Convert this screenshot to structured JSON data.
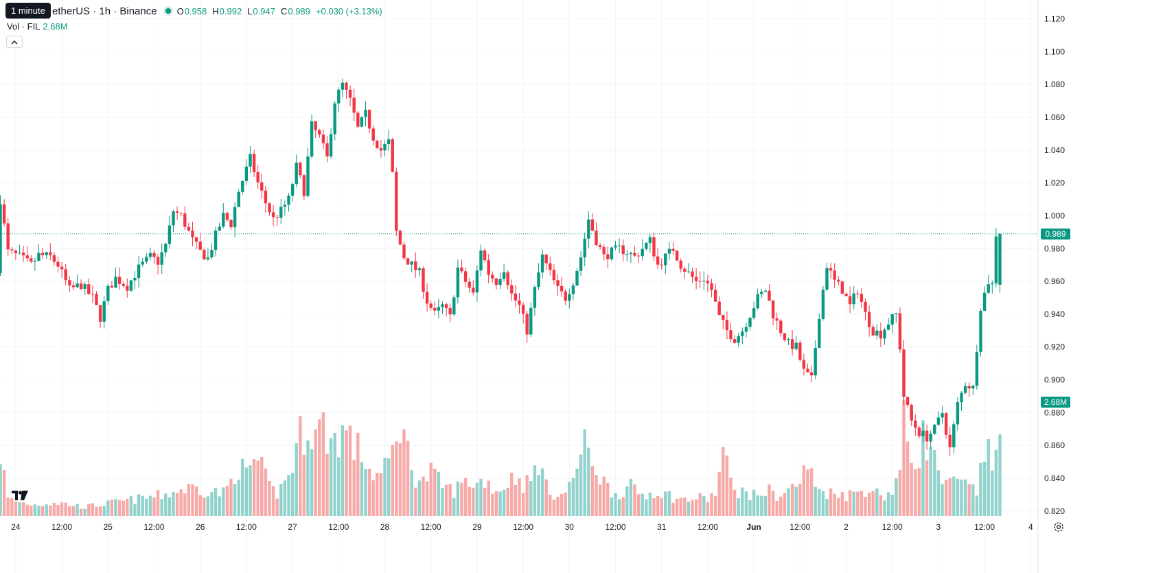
{
  "header": {
    "tooltip": "1 minute",
    "symbol": "etherUS · 1h · Binance",
    "open_label": "O",
    "open": "0.958",
    "high_label": "H",
    "high": "0.992",
    "low_label": "L",
    "low": "0.947",
    "close_label": "C",
    "close": "0.989",
    "change": "+0.030 (+3.13%)"
  },
  "volume_legend": {
    "label": "Vol · FIL",
    "value": "2.68M"
  },
  "last_price_label": "0.989",
  "last_volume_label": "2.68M",
  "colors": {
    "up": "#089981",
    "down": "#f23645",
    "up_volume": "#92d2cc",
    "down_volume": "#f7a9a7",
    "grid": "#f0f3fa"
  },
  "icons": {
    "logo": "tradingview-logo-icon",
    "collapse": "chevron-up-icon",
    "settings": "gear-icon"
  },
  "chart_data": {
    "type": "candlestick",
    "timeframe": "1h",
    "y_axis": {
      "ylim": [
        0.815,
        1.125
      ],
      "ticks": [
        "1.120",
        "1.100",
        "1.080",
        "1.060",
        "1.040",
        "1.020",
        "1.000",
        "0.980",
        "0.960",
        "0.940",
        "0.920",
        "0.900",
        "0.880",
        "0.860",
        "0.840",
        "0.820"
      ]
    },
    "x_axis": {
      "ticks": [
        {
          "label": "24",
          "index": 4
        },
        {
          "label": "12:00",
          "index": 16
        },
        {
          "label": "25",
          "index": 28
        },
        {
          "label": "12:00",
          "index": 40
        },
        {
          "label": "26",
          "index": 52
        },
        {
          "label": "12:00",
          "index": 64
        },
        {
          "label": "27",
          "index": 76
        },
        {
          "label": "12:00",
          "index": 88
        },
        {
          "label": "28",
          "index": 100
        },
        {
          "label": "12:00",
          "index": 112
        },
        {
          "label": "29",
          "index": 124
        },
        {
          "label": "12:00",
          "index": 136
        },
        {
          "label": "30",
          "index": 148
        },
        {
          "label": "12:00",
          "index": 160
        },
        {
          "label": "31",
          "index": 172
        },
        {
          "label": "12:00",
          "index": 184
        },
        {
          "label": "Jun",
          "index": 196
        },
        {
          "label": "12:00",
          "index": 208
        },
        {
          "label": "2",
          "index": 220
        },
        {
          "label": "12:00",
          "index": 232
        },
        {
          "label": "3",
          "index": 244
        },
        {
          "label": "12:00",
          "index": 256
        },
        {
          "label": "4",
          "index": 268
        }
      ]
    },
    "last_price": 0.989,
    "price_path": [
      [
        0,
        0.965
      ],
      [
        1,
        1.01
      ],
      [
        3,
        0.978
      ],
      [
        6,
        0.975
      ],
      [
        9,
        0.97
      ],
      [
        11,
        0.976
      ],
      [
        14,
        0.975
      ],
      [
        16,
        0.97
      ],
      [
        19,
        0.955
      ],
      [
        22,
        0.958
      ],
      [
        25,
        0.95
      ],
      [
        27,
        0.938
      ],
      [
        29,
        0.955
      ],
      [
        31,
        0.962
      ],
      [
        34,
        0.957
      ],
      [
        37,
        0.968
      ],
      [
        40,
        0.975
      ],
      [
        42,
        0.972
      ],
      [
        44,
        0.982
      ],
      [
        46,
        1.003
      ],
      [
        48,
        1.0
      ],
      [
        51,
        0.985
      ],
      [
        53,
        0.978
      ],
      [
        55,
        0.974
      ],
      [
        57,
        0.988
      ],
      [
        59,
        1.0
      ],
      [
        61,
        0.995
      ],
      [
        63,
        1.015
      ],
      [
        66,
        1.035
      ],
      [
        68,
        1.02
      ],
      [
        70,
        1.008
      ],
      [
        72,
        0.998
      ],
      [
        74,
        1.003
      ],
      [
        76,
        1.01
      ],
      [
        78,
        1.03
      ],
      [
        80,
        1.015
      ],
      [
        82,
        1.055
      ],
      [
        84,
        1.048
      ],
      [
        86,
        1.035
      ],
      [
        88,
        1.07
      ],
      [
        90,
        1.08
      ],
      [
        92,
        1.07
      ],
      [
        94,
        1.053
      ],
      [
        96,
        1.062
      ],
      [
        98,
        1.048
      ],
      [
        100,
        1.04
      ],
      [
        102,
        1.045
      ],
      [
        103,
        1.025
      ],
      [
        104,
        0.99
      ],
      [
        106,
        0.975
      ],
      [
        108,
        0.97
      ],
      [
        110,
        0.965
      ],
      [
        112,
        0.948
      ],
      [
        114,
        0.94
      ],
      [
        116,
        0.945
      ],
      [
        118,
        0.938
      ],
      [
        120,
        0.968
      ],
      [
        122,
        0.96
      ],
      [
        124,
        0.952
      ],
      [
        126,
        0.98
      ],
      [
        128,
        0.965
      ],
      [
        130,
        0.96
      ],
      [
        132,
        0.968
      ],
      [
        134,
        0.952
      ],
      [
        136,
        0.945
      ],
      [
        138,
        0.93
      ],
      [
        140,
        0.955
      ],
      [
        142,
        0.975
      ],
      [
        144,
        0.965
      ],
      [
        146,
        0.955
      ],
      [
        148,
        0.95
      ],
      [
        150,
        0.96
      ],
      [
        152,
        0.975
      ],
      [
        154,
        0.998
      ],
      [
        156,
        0.985
      ],
      [
        158,
        0.975
      ],
      [
        160,
        0.978
      ],
      [
        162,
        0.98
      ],
      [
        164,
        0.978
      ],
      [
        166,
        0.975
      ],
      [
        168,
        0.98
      ],
      [
        170,
        0.985
      ],
      [
        172,
        0.97
      ],
      [
        174,
        0.975
      ],
      [
        176,
        0.98
      ],
      [
        178,
        0.97
      ],
      [
        180,
        0.965
      ],
      [
        182,
        0.96
      ],
      [
        184,
        0.962
      ],
      [
        186,
        0.955
      ],
      [
        188,
        0.938
      ],
      [
        190,
        0.93
      ],
      [
        192,
        0.925
      ],
      [
        194,
        0.93
      ],
      [
        196,
        0.94
      ],
      [
        198,
        0.95
      ],
      [
        200,
        0.955
      ],
      [
        202,
        0.94
      ],
      [
        204,
        0.93
      ],
      [
        206,
        0.922
      ],
      [
        208,
        0.92
      ],
      [
        210,
        0.905
      ],
      [
        212,
        0.9
      ],
      [
        214,
        0.94
      ],
      [
        216,
        0.97
      ],
      [
        218,
        0.96
      ],
      [
        220,
        0.955
      ],
      [
        222,
        0.945
      ],
      [
        224,
        0.955
      ],
      [
        226,
        0.94
      ],
      [
        228,
        0.93
      ],
      [
        230,
        0.928
      ],
      [
        232,
        0.935
      ],
      [
        234,
        0.94
      ],
      [
        235,
        0.92
      ],
      [
        236,
        0.89
      ],
      [
        238,
        0.875
      ],
      [
        240,
        0.868
      ],
      [
        242,
        0.865
      ],
      [
        244,
        0.87
      ],
      [
        246,
        0.88
      ],
      [
        248,
        0.858
      ],
      [
        250,
        0.885
      ],
      [
        252,
        0.898
      ],
      [
        254,
        0.895
      ],
      [
        256,
        0.945
      ],
      [
        258,
        0.96
      ],
      [
        259,
        0.958
      ],
      [
        260,
        0.989
      ]
    ],
    "volume_path": [
      [
        0,
        0.55
      ],
      [
        2,
        0.15
      ],
      [
        5,
        0.12
      ],
      [
        9,
        0.1
      ],
      [
        14,
        0.12
      ],
      [
        18,
        0.1
      ],
      [
        22,
        0.08
      ],
      [
        26,
        0.1
      ],
      [
        30,
        0.12
      ],
      [
        34,
        0.14
      ],
      [
        38,
        0.16
      ],
      [
        42,
        0.18
      ],
      [
        46,
        0.22
      ],
      [
        50,
        0.25
      ],
      [
        54,
        0.22
      ],
      [
        58,
        0.2
      ],
      [
        60,
        0.3
      ],
      [
        62,
        0.45
      ],
      [
        64,
        0.35
      ],
      [
        66,
        0.5
      ],
      [
        68,
        0.4
      ],
      [
        70,
        0.25
      ],
      [
        72,
        0.2
      ],
      [
        74,
        0.3
      ],
      [
        76,
        0.45
      ],
      [
        78,
        0.7
      ],
      [
        80,
        0.8
      ],
      [
        82,
        0.72
      ],
      [
        84,
        0.78
      ],
      [
        86,
        0.65
      ],
      [
        88,
        0.7
      ],
      [
        90,
        0.75
      ],
      [
        92,
        0.6
      ],
      [
        94,
        0.55
      ],
      [
        96,
        0.4
      ],
      [
        98,
        0.35
      ],
      [
        100,
        0.4
      ],
      [
        102,
        0.55
      ],
      [
        104,
        0.85
      ],
      [
        106,
        0.55
      ],
      [
        108,
        0.35
      ],
      [
        110,
        0.3
      ],
      [
        112,
        0.38
      ],
      [
        114,
        0.3
      ],
      [
        116,
        0.25
      ],
      [
        118,
        0.22
      ],
      [
        120,
        0.28
      ],
      [
        122,
        0.3
      ],
      [
        124,
        0.28
      ],
      [
        126,
        0.32
      ],
      [
        128,
        0.25
      ],
      [
        130,
        0.22
      ],
      [
        132,
        0.3
      ],
      [
        134,
        0.35
      ],
      [
        136,
        0.28
      ],
      [
        138,
        0.3
      ],
      [
        140,
        0.5
      ],
      [
        142,
        0.25
      ],
      [
        144,
        0.2
      ],
      [
        146,
        0.18
      ],
      [
        148,
        0.25
      ],
      [
        150,
        0.45
      ],
      [
        152,
        0.6
      ],
      [
        154,
        0.5
      ],
      [
        156,
        0.35
      ],
      [
        158,
        0.25
      ],
      [
        160,
        0.2
      ],
      [
        162,
        0.22
      ],
      [
        164,
        0.25
      ],
      [
        166,
        0.2
      ],
      [
        168,
        0.18
      ],
      [
        170,
        0.22
      ],
      [
        172,
        0.2
      ],
      [
        174,
        0.18
      ],
      [
        176,
        0.15
      ],
      [
        178,
        0.14
      ],
      [
        180,
        0.15
      ],
      [
        182,
        0.16
      ],
      [
        184,
        0.15
      ],
      [
        186,
        0.2
      ],
      [
        188,
        0.55
      ],
      [
        190,
        0.3
      ],
      [
        192,
        0.22
      ],
      [
        194,
        0.2
      ],
      [
        196,
        0.18
      ],
      [
        198,
        0.2
      ],
      [
        200,
        0.22
      ],
      [
        202,
        0.18
      ],
      [
        204,
        0.2
      ],
      [
        206,
        0.25
      ],
      [
        208,
        0.3
      ],
      [
        210,
        0.45
      ],
      [
        212,
        0.25
      ],
      [
        214,
        0.22
      ],
      [
        216,
        0.2
      ],
      [
        218,
        0.22
      ],
      [
        220,
        0.18
      ],
      [
        222,
        0.2
      ],
      [
        224,
        0.22
      ],
      [
        226,
        0.25
      ],
      [
        228,
        0.2
      ],
      [
        230,
        0.18
      ],
      [
        232,
        0.22
      ],
      [
        234,
        0.4
      ],
      [
        235,
        0.8
      ],
      [
        236,
        0.65
      ],
      [
        238,
        0.45
      ],
      [
        240,
        0.7
      ],
      [
        242,
        0.55
      ],
      [
        244,
        0.4
      ],
      [
        246,
        0.25
      ],
      [
        248,
        0.3
      ],
      [
        250,
        0.28
      ],
      [
        252,
        0.25
      ],
      [
        254,
        0.22
      ],
      [
        256,
        0.5
      ],
      [
        257,
        0.8
      ],
      [
        258,
        0.5
      ],
      [
        259,
        0.45
      ],
      [
        260,
        0.75
      ]
    ]
  }
}
